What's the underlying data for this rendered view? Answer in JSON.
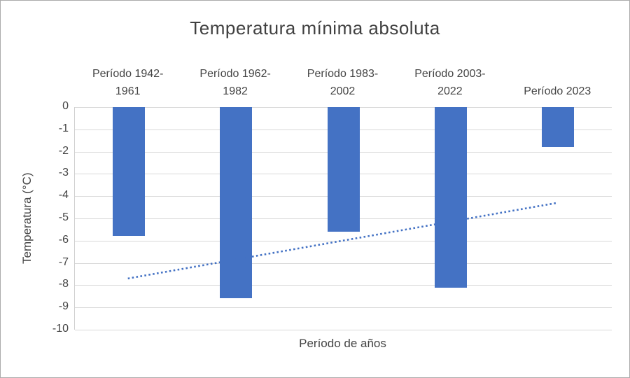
{
  "chart_data": {
    "type": "bar",
    "title": "Temperatura mínima absoluta",
    "xlabel": "Período de años",
    "ylabel": "Temperatura (°C)",
    "categories": [
      "Período 1942-1961",
      "Período 1962-1982",
      "Período 1983-2002",
      "Período 2003-2022",
      "Período 2023"
    ],
    "category_label_lines": [
      [
        "Período 1942-",
        "1961"
      ],
      [
        "Período 1962-",
        "1982"
      ],
      [
        "Período 1983-",
        "2002"
      ],
      [
        "Período 2003-",
        "2022"
      ],
      [
        "Período 2023"
      ]
    ],
    "values": [
      -5.8,
      -8.6,
      -5.6,
      -8.1,
      -1.8
    ],
    "ylim": [
      -10,
      0
    ],
    "yticks": [
      0,
      -1,
      -2,
      -3,
      -4,
      -5,
      -6,
      -7,
      -8,
      -9,
      -10
    ],
    "grid": true,
    "legend": "none",
    "bar_color": "#4472c4",
    "trendline": {
      "style": "dotted",
      "color": "#4472c4",
      "start_value": -7.7,
      "end_value": -4.3
    }
  }
}
